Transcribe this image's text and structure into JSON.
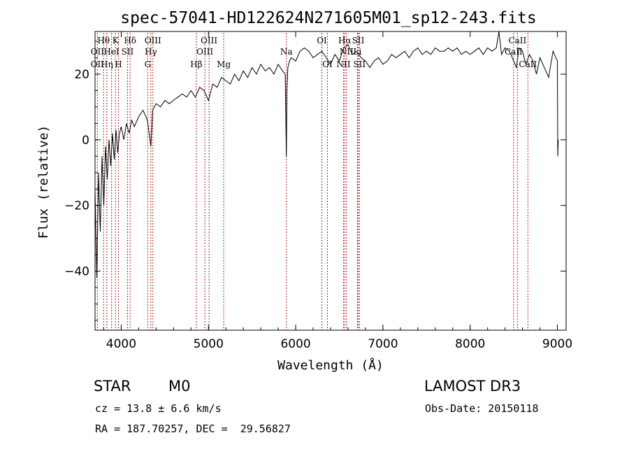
{
  "chart_data": {
    "type": "line",
    "title": "spec-57041-HD122624N271605M01_sp12-243.fits",
    "xlabel": "Wavelength (Å)",
    "ylabel": "Flux (relative)",
    "xlim": [
      3700,
      9100
    ],
    "ylim": [
      -58,
      33
    ],
    "xticks": [
      4000,
      5000,
      6000,
      7000,
      8000,
      9000
    ],
    "yticks": [
      -40,
      -20,
      0,
      20
    ],
    "grid": false,
    "series": [
      {
        "name": "flux",
        "x": [
          3700,
          3720,
          3740,
          3760,
          3780,
          3800,
          3820,
          3840,
          3860,
          3880,
          3900,
          3920,
          3940,
          3960,
          3980,
          4000,
          4030,
          4060,
          4090,
          4120,
          4150,
          4200,
          4250,
          4300,
          4340,
          4360,
          4400,
          4450,
          4500,
          4550,
          4600,
          4650,
          4700,
          4750,
          4800,
          4850,
          4900,
          4950,
          5000,
          5050,
          5100,
          5150,
          5200,
          5250,
          5300,
          5350,
          5400,
          5450,
          5500,
          5550,
          5600,
          5650,
          5700,
          5750,
          5800,
          5850,
          5880,
          5893,
          5900,
          5910,
          5930,
          5950,
          6000,
          6050,
          6100,
          6150,
          6200,
          6250,
          6300,
          6350,
          6400,
          6450,
          6500,
          6550,
          6600,
          6650,
          6700,
          6750,
          6800,
          6850,
          6900,
          6950,
          7000,
          7050,
          7100,
          7150,
          7200,
          7250,
          7300,
          7350,
          7400,
          7450,
          7500,
          7550,
          7600,
          7650,
          7700,
          7750,
          7800,
          7850,
          7900,
          7950,
          8000,
          8050,
          8100,
          8150,
          8200,
          8250,
          8300,
          8330,
          8360,
          8400,
          8450,
          8500,
          8530,
          8560,
          8600,
          8640,
          8680,
          8720,
          8760,
          8800,
          8850,
          8900,
          8950,
          9000,
          9005,
          9010
        ],
        "y": [
          -15,
          -42,
          -10,
          -28,
          -5,
          -20,
          -2,
          -12,
          0,
          -8,
          2,
          -6,
          3,
          -4,
          2,
          4,
          0,
          5,
          2,
          6,
          4,
          7,
          9,
          6,
          -2,
          9,
          11,
          10,
          12,
          11,
          12,
          13,
          14,
          13,
          15,
          13,
          16,
          15,
          12,
          17,
          16,
          19,
          18,
          17,
          20,
          18,
          21,
          19,
          22,
          20,
          23,
          21,
          22,
          20,
          23,
          21,
          20,
          -5,
          15,
          22,
          24,
          25,
          24,
          27,
          28,
          27,
          25,
          26,
          27,
          25,
          23,
          26,
          24,
          28,
          29,
          26,
          27,
          25,
          24,
          22,
          24,
          25,
          23,
          24,
          26,
          25,
          26,
          27,
          25,
          27,
          28,
          26,
          27,
          26,
          28,
          27,
          27,
          28,
          27,
          28,
          26,
          27,
          26,
          27,
          28,
          26,
          28,
          27,
          28,
          33,
          26,
          28,
          27,
          24,
          22,
          28,
          27,
          23,
          26,
          24,
          20,
          25,
          22,
          19,
          27,
          24,
          -5,
          0
        ]
      }
    ],
    "lines": [
      {
        "label": "Hθ",
        "wave": 3798,
        "row": 0
      },
      {
        "label": "K",
        "wave": 3934,
        "row": 0
      },
      {
        "label": "Hδ",
        "wave": 4102,
        "row": 0
      },
      {
        "label": "OIII",
        "wave": 4363,
        "row": 0
      },
      {
        "label": "OIII",
        "wave": 5007,
        "row": 0
      },
      {
        "label": "OI",
        "wave": 6300,
        "row": 0
      },
      {
        "label": "Hα",
        "wave": 6563,
        "row": 0
      },
      {
        "label": "SII",
        "wave": 6717,
        "row": 0
      },
      {
        "label": "CaII",
        "wave": 8542,
        "row": 0
      },
      {
        "label": "OII",
        "wave": 3727,
        "row": 1
      },
      {
        "label": "HeI",
        "wave": 3889,
        "row": 1
      },
      {
        "label": "SII",
        "wave": 4072,
        "row": 1
      },
      {
        "label": "Hγ",
        "wave": 4340,
        "row": 1
      },
      {
        "label": "OIII",
        "wave": 4959,
        "row": 1
      },
      {
        "label": "Na",
        "wave": 5893,
        "row": 1
      },
      {
        "label": "NII",
        "wave": 6583,
        "row": 1
      },
      {
        "label": "Li",
        "wave": 6708,
        "row": 1
      },
      {
        "label": "CaII",
        "wave": 8498,
        "row": 1
      },
      {
        "label": "OII",
        "wave": 3727,
        "row": 2
      },
      {
        "label": "Hη",
        "wave": 3835,
        "row": 2
      },
      {
        "label": "H",
        "wave": 3968,
        "row": 2
      },
      {
        "label": "G",
        "wave": 4304,
        "row": 2
      },
      {
        "label": "Hβ",
        "wave": 4861,
        "row": 2
      },
      {
        "label": "Mg",
        "wave": 5175,
        "row": 2
      },
      {
        "label": "OI",
        "wave": 6364,
        "row": 2
      },
      {
        "label": "NII",
        "wave": 6548,
        "row": 2
      },
      {
        "label": "SII",
        "wave": 6731,
        "row": 2
      },
      {
        "label": "CaII",
        "wave": 8662,
        "row": 2
      }
    ]
  },
  "info": {
    "class_label": "STAR",
    "subclass": "M0",
    "survey": "LAMOST DR3",
    "redshift": "cz = 13.8 ± 6.6 km/s",
    "obs_date": "Obs-Date: 20150118",
    "coords": "RA = 187.70257, DEC =  29.56827"
  }
}
